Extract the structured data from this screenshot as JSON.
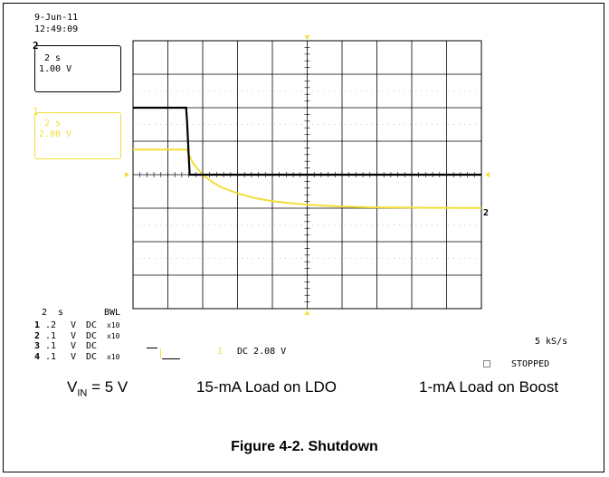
{
  "chart_data": {
    "type": "line",
    "title": "Figure 4-2. Shutdown",
    "x": {
      "unit": "s",
      "time_per_div": 2,
      "divisions": 10,
      "range": [
        0,
        20
      ]
    },
    "y": {
      "divisions": 8
    },
    "series": [
      {
        "name": "",
        "channel": 1,
        "color": "#f2de3a",
        "volts_per_div": 2.0,
        "reference_level_div": 1.0,
        "points": [
          [
            0,
            3.5
          ],
          [
            3.1,
            3.5
          ],
          [
            3.2,
            3.2
          ],
          [
            3.5,
            2.6
          ],
          [
            4.0,
            2.0
          ],
          [
            4.5,
            1.6
          ],
          [
            5.0,
            1.28
          ],
          [
            6.0,
            0.88
          ],
          [
            7.0,
            0.6
          ],
          [
            8.0,
            0.42
          ],
          [
            9.0,
            0.3
          ],
          [
            10.0,
            0.21
          ],
          [
            11.0,
            0.15
          ],
          [
            12.0,
            0.1
          ],
          [
            13.0,
            0.07
          ],
          [
            14.0,
            0.05
          ],
          [
            15.0,
            0.04
          ],
          [
            16.0,
            0.03
          ],
          [
            17.0,
            0.02
          ],
          [
            18.0,
            0.02
          ],
          [
            19.0,
            0.01
          ],
          [
            20.0,
            0.01
          ]
        ]
      },
      {
        "name": "",
        "channel": 2,
        "color": "#000000",
        "volts_per_div": 1.0,
        "reference_level_div": 0.0,
        "points": [
          [
            0,
            2.0
          ],
          [
            3.05,
            2.0
          ],
          [
            3.1,
            1.6
          ],
          [
            3.25,
            0.0
          ],
          [
            20,
            0.0
          ]
        ]
      }
    ]
  },
  "scope": {
    "date": "9-Jun-11",
    "time": "12:49:09",
    "ch2_box": {
      "num": "2",
      "time": "2 s",
      "volts": "1.00 V"
    },
    "ch1_box": {
      "num": "1",
      "time": "2 s",
      "volts": "2.00 V"
    },
    "timebase": "2  s",
    "bwl": "BWL",
    "channels": [
      {
        "num": "1",
        "v": ".2",
        "unit": "V",
        "coupling": "DC",
        "probe": "x10"
      },
      {
        "num": "2",
        "v": ".1",
        "unit": "V",
        "coupling": "DC",
        "probe": "x10"
      },
      {
        "num": "3",
        "v": ".1",
        "unit": "V",
        "coupling": "DC",
        "probe": ""
      },
      {
        "num": "4",
        "v": ".1",
        "unit": "V",
        "coupling": "DC",
        "probe": "x10"
      }
    ],
    "trigger_level": "DC 2.08 V",
    "trigger_channel": "1",
    "sample_rate": "5 kS/s",
    "status": "STOPPED",
    "marker_2": "2"
  },
  "captions": {
    "vin_prefix": "V",
    "vin_sub": "IN",
    "vin_rest": " = 5 V",
    "ldo": "15-mA Load on LDO",
    "boost": "1-mA Load on Boost"
  },
  "colors": {
    "ch1": "#f2de3a",
    "grid": "#000000",
    "ch2": "#000000"
  }
}
